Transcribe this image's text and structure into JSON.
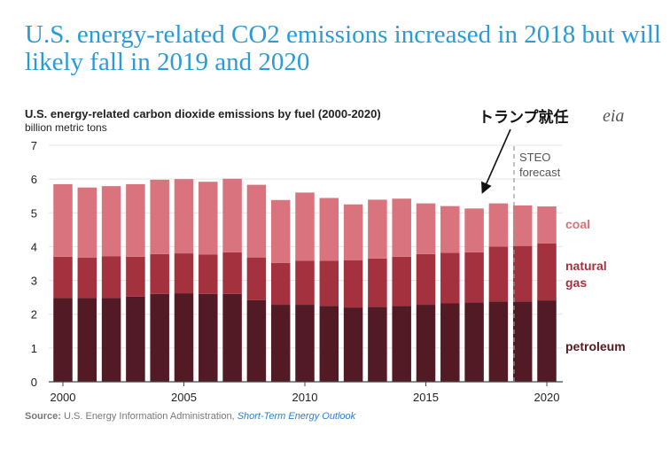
{
  "headline": "U.S. energy-related CO2 emissions increased in 2018 but will likely fall in 2019 and 2020",
  "annotation": "トランプ就任",
  "logo_text": "eia",
  "source": {
    "label": "Source:",
    "agency": "U.S. Energy Information Administration,",
    "report": "Short-Term Energy Outlook"
  },
  "colors": {
    "petroleum": "#521a24",
    "natural_gas": "#a3313e",
    "coal": "#d9737d",
    "coal_label": "#d9737d",
    "gas_label": "#a3313e",
    "petroleum_label": "#521a24"
  },
  "chart_data": {
    "type": "bar",
    "stacked": true,
    "title": "U.S. energy-related carbon dioxide emissions by fuel (2000-2020)",
    "ylabel": "billion metric tons",
    "ylim": [
      0,
      7
    ],
    "yticks": [
      0,
      1,
      2,
      3,
      4,
      5,
      6,
      7
    ],
    "xticks": [
      "2000",
      "2005",
      "2010",
      "2015",
      "2020"
    ],
    "categories": [
      2000,
      2001,
      2002,
      2003,
      2004,
      2005,
      2006,
      2007,
      2008,
      2009,
      2010,
      2011,
      2012,
      2013,
      2014,
      2015,
      2016,
      2017,
      2018,
      2019,
      2020
    ],
    "forecast_start": 2019,
    "forecast_label_line1": "STEO",
    "forecast_label_line2": "forecast",
    "series": [
      {
        "name": "petroleum",
        "values": [
          2.48,
          2.48,
          2.48,
          2.52,
          2.6,
          2.62,
          2.6,
          2.6,
          2.42,
          2.28,
          2.28,
          2.25,
          2.2,
          2.22,
          2.25,
          2.28,
          2.32,
          2.35,
          2.38,
          2.38,
          2.41
        ]
      },
      {
        "name": "natural gas",
        "values": [
          1.22,
          1.19,
          1.23,
          1.18,
          1.18,
          1.18,
          1.17,
          1.23,
          1.26,
          1.24,
          1.3,
          1.33,
          1.4,
          1.43,
          1.45,
          1.5,
          1.5,
          1.48,
          1.62,
          1.64,
          1.68
        ]
      },
      {
        "name": "coal",
        "values": [
          2.15,
          2.08,
          2.08,
          2.15,
          2.2,
          2.2,
          2.15,
          2.18,
          2.15,
          1.86,
          2.02,
          1.86,
          1.65,
          1.74,
          1.72,
          1.5,
          1.38,
          1.3,
          1.28,
          1.2,
          1.1
        ]
      }
    ],
    "series_labels": {
      "coal": "coal",
      "natural_gas_line1": "natural",
      "natural_gas_line2": "gas",
      "petroleum": "petroleum"
    }
  }
}
